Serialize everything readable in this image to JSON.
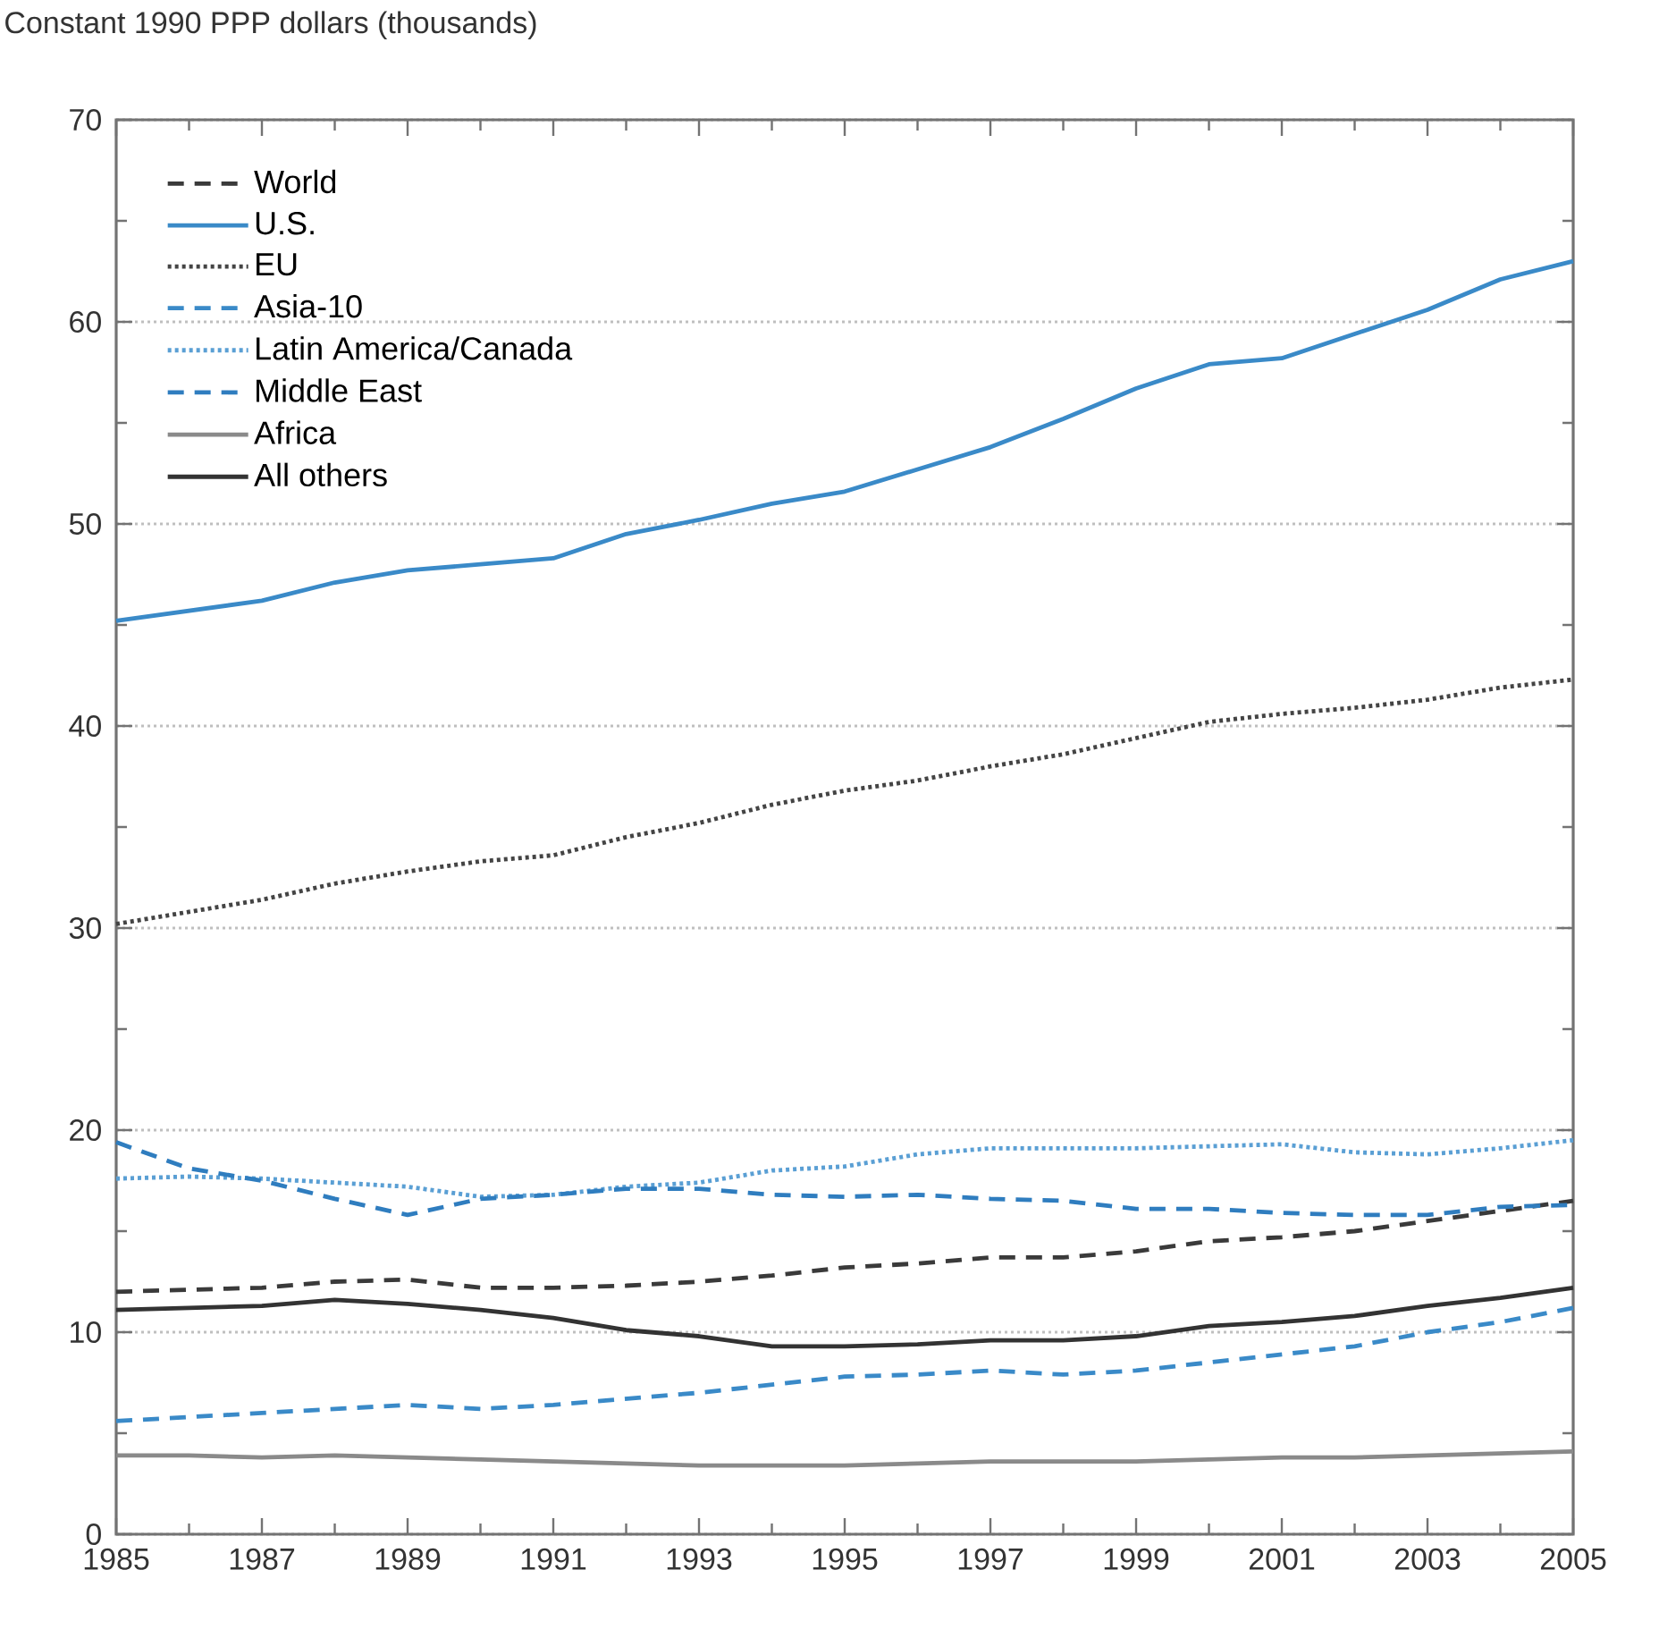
{
  "chart_data": {
    "type": "line",
    "ylabel": "Constant 1990 PPP dollars (thousands)",
    "x": [
      1985,
      1986,
      1987,
      1988,
      1989,
      1990,
      1991,
      1992,
      1993,
      1994,
      1995,
      1996,
      1997,
      1998,
      1999,
      2000,
      2001,
      2002,
      2003,
      2004,
      2005
    ],
    "xlim": [
      1985,
      2005
    ],
    "xticks": [
      1985,
      1987,
      1989,
      1991,
      1993,
      1995,
      1997,
      1999,
      2001,
      2003,
      2005
    ],
    "ylim": [
      0,
      70
    ],
    "yticks": [
      0,
      10,
      20,
      30,
      40,
      50,
      60,
      70
    ],
    "grid": "y",
    "legend": "top left",
    "series": [
      {
        "name": "World",
        "color": "#3a3a3a",
        "line_style": "dashed",
        "values": [
          12.0,
          12.1,
          12.2,
          12.5,
          12.6,
          12.2,
          12.2,
          12.3,
          12.5,
          12.8,
          13.2,
          13.4,
          13.7,
          13.7,
          14.0,
          14.5,
          14.7,
          15.0,
          15.5,
          16.0,
          16.5
        ]
      },
      {
        "name": "U.S.",
        "color": "#3a8ac8",
        "line_style": "solid",
        "values": [
          45.2,
          45.7,
          46.2,
          47.1,
          47.7,
          48.0,
          48.3,
          49.5,
          50.2,
          51.0,
          51.6,
          52.7,
          53.8,
          55.2,
          56.7,
          57.9,
          58.2,
          59.4,
          60.6,
          62.1,
          63.0
        ]
      },
      {
        "name": "EU",
        "color": "#444444",
        "line_style": "dotted",
        "values": [
          30.2,
          30.8,
          31.4,
          32.2,
          32.8,
          33.3,
          33.6,
          34.5,
          35.2,
          36.1,
          36.8,
          37.3,
          38.0,
          38.6,
          39.4,
          40.2,
          40.6,
          40.9,
          41.3,
          41.9,
          42.3
        ]
      },
      {
        "name": "Asia-10",
        "color": "#3a8ac8",
        "line_style": "dashed",
        "values": [
          5.6,
          5.8,
          6.0,
          6.2,
          6.4,
          6.2,
          6.4,
          6.7,
          7.0,
          7.4,
          7.8,
          7.9,
          8.1,
          7.9,
          8.1,
          8.5,
          8.9,
          9.3,
          10.0,
          10.5,
          11.2
        ]
      },
      {
        "name": "Latin America/Canada",
        "color": "#5a9fd4",
        "line_style": "dotted",
        "values": [
          17.6,
          17.7,
          17.6,
          17.4,
          17.2,
          16.7,
          16.8,
          17.2,
          17.4,
          18.0,
          18.2,
          18.8,
          19.1,
          19.1,
          19.1,
          19.2,
          19.3,
          18.9,
          18.8,
          19.1,
          19.5
        ]
      },
      {
        "name": "Middle East",
        "color": "#2f7dbf",
        "line_style": "dashed",
        "values": [
          19.4,
          18.1,
          17.5,
          16.6,
          15.8,
          16.6,
          16.8,
          17.1,
          17.1,
          16.8,
          16.7,
          16.8,
          16.6,
          16.5,
          16.1,
          16.1,
          15.9,
          15.8,
          15.8,
          16.2,
          16.3
        ]
      },
      {
        "name": "Africa",
        "color": "#8a8a8a",
        "line_style": "solid",
        "values": [
          3.9,
          3.9,
          3.8,
          3.9,
          3.8,
          3.7,
          3.6,
          3.5,
          3.4,
          3.4,
          3.4,
          3.5,
          3.6,
          3.6,
          3.6,
          3.7,
          3.8,
          3.8,
          3.9,
          4.0,
          4.1
        ]
      },
      {
        "name": "All others",
        "color": "#333333",
        "line_style": "solid",
        "values": [
          11.1,
          11.2,
          11.3,
          11.6,
          11.4,
          11.1,
          10.7,
          10.1,
          9.8,
          9.3,
          9.3,
          9.4,
          9.6,
          9.6,
          9.8,
          10.3,
          10.5,
          10.8,
          11.3,
          11.7,
          12.2
        ]
      }
    ]
  }
}
